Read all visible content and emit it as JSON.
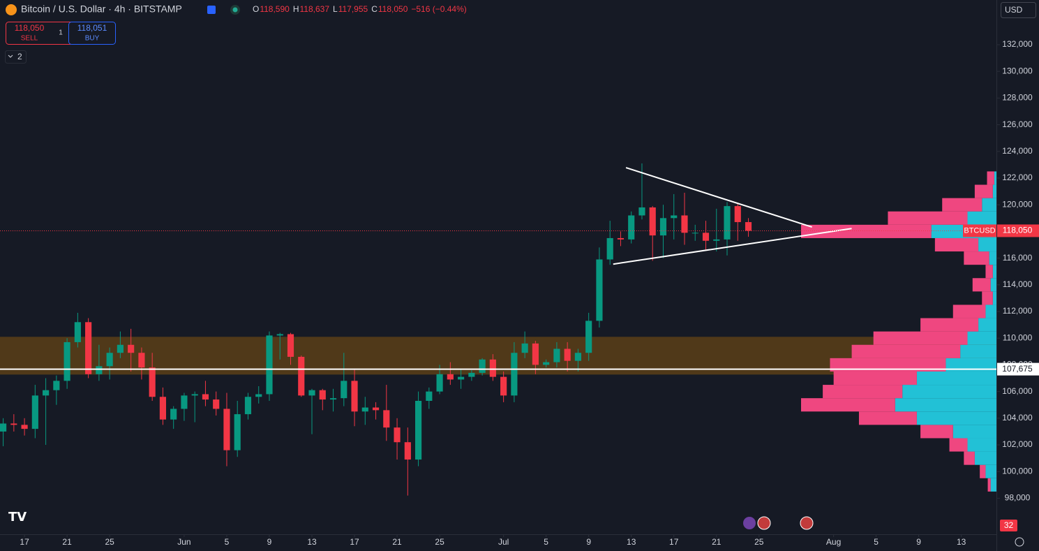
{
  "header": {
    "title": "Bitcoin / U.S. Dollar · 4h · BITSTAMP",
    "ohlc": [
      {
        "key": "O",
        "value": "118,590"
      },
      {
        "key": "H",
        "value": "118,637"
      },
      {
        "key": "L",
        "value": "117,955"
      },
      {
        "key": "C",
        "value": "118,050"
      }
    ],
    "change": "−516 (−0.44%)",
    "sell_price": "118,050",
    "sell": "SELL",
    "quantity": "1",
    "buy_price": "118,051",
    "buy": "BUY",
    "indicators": "2",
    "currency": "USD",
    "countdown": "32"
  },
  "chart_data": {
    "type": "candlestick",
    "x": [
      0,
      1,
      2,
      3,
      4,
      5,
      6,
      7,
      8,
      9,
      10,
      11,
      12,
      13,
      14,
      15,
      16,
      17,
      18,
      19,
      20,
      21,
      22,
      23,
      24,
      25,
      26,
      27,
      28,
      29,
      30,
      31,
      32,
      33,
      34,
      35,
      36,
      37,
      38,
      39,
      40,
      41,
      42,
      43,
      44,
      45,
      46,
      47,
      48,
      49,
      50,
      51,
      52,
      53,
      54,
      55,
      56,
      57,
      58,
      59,
      60,
      61,
      62,
      63,
      64,
      65,
      66,
      67,
      68,
      69,
      70
    ],
    "open": [
      103000,
      103600,
      103500,
      103200,
      105700,
      106100,
      106800,
      109700,
      111200,
      107300,
      107900,
      108900,
      109500,
      108900,
      107800,
      105600,
      103900,
      104700,
      105700,
      105800,
      105400,
      104700,
      101600,
      104300,
      105600,
      105800,
      110200,
      110300,
      108600,
      105700,
      106100,
      105400,
      105500,
      106800,
      104500,
      104800,
      104600,
      103300,
      102200,
      100900,
      105300,
      106000,
      107300,
      106900,
      107100,
      107400,
      108400,
      107100,
      105700,
      108900,
      109600,
      108000,
      108200,
      109200,
      108300,
      108900,
      111300,
      115900,
      117500,
      117400,
      119200,
      119800,
      117700,
      119000,
      119200,
      117900,
      117900,
      117300,
      117400,
      119900,
      118700
    ],
    "high": [
      104000,
      104300,
      104000,
      106500,
      107000,
      107200,
      110000,
      111900,
      111500,
      109500,
      109300,
      110500,
      110700,
      109300,
      108900,
      106300,
      104900,
      105900,
      106000,
      106800,
      106000,
      105900,
      105300,
      105900,
      106400,
      110500,
      110400,
      110400,
      108700,
      106200,
      106200,
      106200,
      108900,
      107700,
      105600,
      105200,
      106500,
      104000,
      103300,
      106000,
      106300,
      108000,
      108200,
      107700,
      107600,
      108500,
      108800,
      107500,
      109700,
      110500,
      109800,
      108400,
      109700,
      109700,
      109200,
      111900,
      116800,
      118800,
      118000,
      119500,
      123100,
      119900,
      120000,
      120800,
      120900,
      118500,
      118800,
      119700,
      120200,
      120100,
      119000
    ],
    "low": [
      101900,
      103000,
      102700,
      102500,
      102000,
      105000,
      106200,
      109300,
      107000,
      106800,
      106900,
      108500,
      107500,
      106900,
      105300,
      103500,
      103200,
      103800,
      103700,
      104900,
      104200,
      100400,
      101100,
      103900,
      105100,
      105300,
      108400,
      108000,
      105600,
      102800,
      104600,
      104500,
      104900,
      103400,
      103500,
      103900,
      102300,
      100900,
      98200,
      100400,
      104700,
      105800,
      106500,
      106200,
      106800,
      107200,
      106800,
      105200,
      105200,
      108500,
      107300,
      107800,
      107800,
      107500,
      107500,
      108300,
      110800,
      115500,
      116900,
      117100,
      118900,
      115800,
      116000,
      117400,
      117000,
      117300,
      116600,
      116500,
      116200,
      117300,
      117600
    ],
    "close": [
      103600,
      103500,
      103200,
      105700,
      106100,
      106800,
      109700,
      111200,
      107300,
      107900,
      108900,
      109500,
      108900,
      107800,
      105600,
      103900,
      104700,
      105700,
      105800,
      105400,
      104700,
      101600,
      104300,
      105600,
      105800,
      110200,
      110300,
      108600,
      105700,
      106100,
      105400,
      105500,
      106800,
      104500,
      104800,
      104600,
      103300,
      102200,
      100900,
      105300,
      106000,
      107300,
      106900,
      107100,
      107400,
      108400,
      107100,
      105700,
      108900,
      109600,
      108000,
      108200,
      109200,
      108300,
      108900,
      111300,
      115900,
      117500,
      117400,
      119200,
      119800,
      117700,
      119000,
      119200,
      117900,
      117900,
      117300,
      117400,
      119900,
      118700,
      118050
    ],
    "up_color": "#089981",
    "down_color": "#f23645",
    "xlim": [
      -0.3,
      93.3
    ],
    "xticks": [
      {
        "value": 2,
        "label": "17"
      },
      {
        "value": 6,
        "label": "21"
      },
      {
        "value": 10,
        "label": "25"
      },
      {
        "value": 17,
        "label": "Jun"
      },
      {
        "value": 21,
        "label": "5"
      },
      {
        "value": 25,
        "label": "9"
      },
      {
        "value": 29,
        "label": "13"
      },
      {
        "value": 33,
        "label": "17"
      },
      {
        "value": 37,
        "label": "21"
      },
      {
        "value": 41,
        "label": "25"
      },
      {
        "value": 47,
        "label": "Jul"
      },
      {
        "value": 51,
        "label": "5"
      },
      {
        "value": 55,
        "label": "9"
      },
      {
        "value": 59,
        "label": "13"
      },
      {
        "value": 63,
        "label": "17"
      },
      {
        "value": 67,
        "label": "21"
      },
      {
        "value": 71,
        "label": "25"
      },
      {
        "value": 78,
        "label": "Aug"
      },
      {
        "value": 82,
        "label": "5"
      },
      {
        "value": 86,
        "label": "9"
      },
      {
        "value": 90,
        "label": "13"
      }
    ],
    "ylim": [
      95300,
      135350
    ],
    "yticks": [
      {
        "value": 98000,
        "label": "98,000"
      },
      {
        "value": 100000,
        "label": "100,000"
      },
      {
        "value": 102000,
        "label": "102,000"
      },
      {
        "value": 104000,
        "label": "104,000"
      },
      {
        "value": 106000,
        "label": "106,000"
      },
      {
        "value": 108000,
        "label": "108,000"
      },
      {
        "value": 110000,
        "label": "110,000"
      },
      {
        "value": 112000,
        "label": "112,000"
      },
      {
        "value": 114000,
        "label": "114,000"
      },
      {
        "value": 116000,
        "label": "116,000"
      },
      {
        "value": 118000,
        "label": "118,000"
      },
      {
        "value": 120000,
        "label": "120,000"
      },
      {
        "value": 122000,
        "label": "122,000"
      },
      {
        "value": 124000,
        "label": "124,000"
      },
      {
        "value": 126000,
        "label": "126,000"
      },
      {
        "value": 128000,
        "label": "128,000"
      },
      {
        "value": 130000,
        "label": "130,000"
      },
      {
        "value": 132000,
        "label": "132,000"
      }
    ],
    "grid": false,
    "zone": {
      "from": 107270,
      "to": 110100,
      "color": "#5a3f17"
    },
    "horizontal_line": {
      "value": 107675,
      "label": "107,675",
      "color": "#ffffff"
    },
    "last_price": {
      "symbol": "BTCUSD",
      "value": 118050,
      "label": "118,050",
      "color": "#f23645"
    },
    "trendlines": [
      {
        "x": [
          58.5,
          75.97
        ],
        "y": [
          122780,
          118330
        ]
      },
      {
        "x": [
          57.3,
          79.7
        ],
        "y": [
          115550,
          118220
        ]
      }
    ],
    "volume_profile": {
      "levels": [
        99000,
        100000,
        101000,
        102000,
        103000,
        104000,
        105000,
        106000,
        107000,
        108000,
        109000,
        110000,
        111000,
        112000,
        113000,
        114000,
        115000,
        116000,
        117000,
        118000,
        119000,
        120000,
        121000,
        122000
      ],
      "up": [
        8,
        15,
        30,
        40,
        60,
        110,
        140,
        130,
        110,
        70,
        50,
        40,
        25,
        15,
        5,
        8,
        5,
        10,
        25,
        90,
        40,
        20,
        5,
        3
      ],
      "down": [
        4,
        8,
        15,
        25,
        45,
        80,
        130,
        110,
        115,
        160,
        150,
        130,
        80,
        45,
        15,
        25,
        10,
        35,
        60,
        180,
        110,
        55,
        25,
        10
      ],
      "up_color": "#22c1d6",
      "down_color": "#ef4780"
    }
  }
}
